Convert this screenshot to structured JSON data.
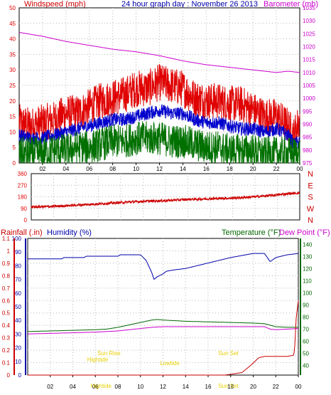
{
  "colors": {
    "windspeed": "#e00000",
    "windspeed_avg": "#0000cc",
    "windspeed_gust": "#007000",
    "barometer": "#cc00cc",
    "direction": "#cc0000",
    "rainfall": "#cc0000",
    "humidity": "#0000aa",
    "temperature": "#006600",
    "dewpoint": "#cc00cc",
    "astro": "#e6d000",
    "grid": "#b8b8b8",
    "ticks": "#000000"
  },
  "header": {
    "left_title": "Windspeed (mph)",
    "center_title": "24 hour graph day : November 26 2013",
    "right_title": "Barometer (mb)"
  },
  "chart_data": [
    {
      "id": "wind",
      "type": "line",
      "grid": true,
      "x_ticks": [
        "02",
        "04",
        "06",
        "08",
        "10",
        "12",
        "14",
        "16",
        "18",
        "20",
        "22",
        "00"
      ],
      "x_range": [
        0,
        24
      ],
      "left_axis": {
        "label": "Windspeed (mph)",
        "ticks": [
          "0",
          "5",
          "10",
          "15",
          "20",
          "25",
          "30",
          "35",
          "40",
          "45",
          "50"
        ],
        "range": [
          0,
          50
        ]
      },
      "right_axis": {
        "label": "Barometer (mb)",
        "ticks": [
          "975",
          "980",
          "985",
          "990",
          "995",
          "1000",
          "1005",
          "1010",
          "1015",
          "1020",
          "1025",
          "1030",
          "1035"
        ],
        "range": [
          975,
          1035
        ]
      },
      "series": [
        {
          "key": "wind_top",
          "axis": "left",
          "x": [
            0,
            1,
            2,
            3,
            4,
            5,
            6,
            7,
            8,
            9,
            10,
            11,
            12,
            13,
            14,
            15,
            16,
            17,
            18,
            19,
            20,
            21,
            22,
            23,
            23.5,
            24
          ],
          "values": [
            13,
            12,
            13,
            14,
            16,
            16,
            18,
            20,
            21,
            22,
            24,
            24,
            26,
            25,
            24,
            21,
            20,
            20,
            19,
            19,
            17,
            15,
            15,
            12,
            9,
            14
          ],
          "noise": 6
        },
        {
          "key": "wind_mid",
          "axis": "left",
          "x": [
            0,
            1,
            2,
            3,
            4,
            5,
            6,
            7,
            8,
            9,
            10,
            11,
            12,
            13,
            14,
            15,
            16,
            17,
            18,
            19,
            20,
            21,
            22,
            23,
            23.5,
            24
          ],
          "values": [
            9,
            8,
            8,
            9,
            10,
            11,
            12,
            13,
            14,
            14,
            15,
            16,
            17,
            16,
            16,
            14,
            13,
            13,
            12,
            11,
            11,
            10,
            11,
            9,
            6,
            7
          ],
          "noise": 2.2
        },
        {
          "key": "wind_low",
          "axis": "left",
          "x": [
            0,
            1,
            2,
            3,
            4,
            5,
            6,
            7,
            8,
            9,
            10,
            11,
            12,
            13,
            14,
            15,
            16,
            17,
            18,
            19,
            20,
            21,
            22,
            23,
            24
          ],
          "values": [
            3,
            3,
            3,
            4,
            4,
            5,
            5,
            6,
            7,
            7,
            8,
            8,
            8,
            7,
            7,
            6,
            5,
            5,
            4,
            4,
            4,
            3,
            3,
            3,
            3
          ],
          "noise": 5.5
        },
        {
          "key": "barometer",
          "axis": "right",
          "x": [
            0,
            2,
            4,
            6,
            8,
            10,
            12,
            14,
            16,
            18,
            20,
            21,
            22,
            23,
            24
          ],
          "values": [
            1025.5,
            1024,
            1022,
            1020.5,
            1019,
            1018,
            1016.5,
            1014.5,
            1013,
            1012,
            1011,
            1010.5,
            1010,
            1010.5,
            1010
          ]
        }
      ]
    },
    {
      "id": "direction",
      "type": "line",
      "grid": true,
      "x_range": [
        0,
        24
      ],
      "left_axis": {
        "ticks": [
          "0",
          "90",
          "180",
          "270",
          "360"
        ],
        "range": [
          0,
          360
        ]
      },
      "right_labels": [
        "N",
        "W",
        "S",
        "E",
        "N"
      ],
      "series": [
        {
          "key": "direction",
          "x": [
            0,
            2,
            4,
            6,
            8,
            10,
            12,
            14,
            16,
            18,
            20,
            22,
            23,
            24
          ],
          "values": [
            100,
            105,
            115,
            125,
            135,
            145,
            150,
            160,
            165,
            170,
            180,
            195,
            205,
            210
          ],
          "noise": 10
        }
      ]
    },
    {
      "id": "rain-humidity-temp",
      "type": "line",
      "grid": true,
      "x_ticks": [
        "02",
        "04",
        "06",
        "08",
        "10",
        "12",
        "14",
        "16",
        "18",
        "20",
        "22",
        "00"
      ],
      "x_range": [
        0,
        24
      ],
      "title_left_1": "Rainfall (.in)",
      "title_left_2": "Humidity (%)",
      "title_right_1": "Temperature (°F)",
      "title_right_2": "Dew Point (°F)",
      "rain_axis": {
        "ticks": [
          "0",
          "0.1",
          "0.2",
          "0.3",
          "0.4",
          "0.5",
          "0.6",
          "0.7",
          "0.8",
          "0.9",
          "1",
          "1.1"
        ],
        "range": [
          0,
          1.1
        ]
      },
      "humidity_axis": {
        "ticks": [
          "0",
          "10",
          "20",
          "30",
          "40",
          "50",
          "60",
          "70",
          "80",
          "90",
          "100"
        ],
        "range": [
          0,
          100
        ]
      },
      "temp_axis": {
        "ticks": [
          "40",
          "50",
          "60",
          "70",
          "80",
          "90",
          "100",
          "110",
          "120",
          "130",
          "140"
        ],
        "range": [
          32,
          145
        ]
      },
      "series": [
        {
          "key": "humidity",
          "axis": "humidity",
          "x": [
            0,
            3,
            3.2,
            5,
            5.2,
            8,
            8.2,
            10,
            10.5,
            11,
            11.2,
            11.5,
            12,
            12.3,
            13,
            14,
            16,
            18,
            20,
            21,
            21.5,
            22,
            23,
            24
          ],
          "values": [
            85,
            85,
            86,
            86,
            87,
            87,
            88,
            88,
            84,
            75,
            70,
            72,
            74,
            76,
            77,
            78,
            82,
            86,
            89,
            89,
            83,
            86,
            88,
            89
          ]
        },
        {
          "key": "temperature",
          "axis": "temp",
          "x": [
            0,
            2,
            4,
            6,
            7,
            8,
            9,
            10,
            11,
            11.5,
            12,
            13,
            14,
            16,
            18,
            20,
            21,
            22,
            23,
            24
          ],
          "values": [
            68,
            68.5,
            69,
            69.5,
            70,
            71.5,
            73.5,
            75.5,
            77.5,
            78,
            77.5,
            77,
            76.5,
            76,
            75.5,
            75,
            74.5,
            72,
            71.5,
            71.5
          ]
        },
        {
          "key": "dewpoint",
          "axis": "temp",
          "x": [
            0,
            2,
            4,
            6,
            8,
            10,
            11,
            12,
            14,
            16,
            18,
            20,
            21,
            21.5,
            22,
            23,
            24
          ],
          "values": [
            66,
            66.5,
            67,
            67.5,
            68.5,
            70.5,
            71.5,
            72,
            72,
            72,
            72,
            72,
            72,
            70,
            69.5,
            70,
            70.5
          ]
        },
        {
          "key": "rainfall",
          "axis": "rain",
          "x": [
            0,
            17.5,
            19,
            19.8,
            20.5,
            21,
            22,
            23,
            23.6,
            23.7,
            23.8,
            24
          ],
          "values": [
            0,
            0,
            0.02,
            0.08,
            0.14,
            0.15,
            0.15,
            0.15,
            0.16,
            0.25,
            0.45,
            0.6
          ]
        }
      ],
      "astro_events": [
        {
          "label": "Sun Rise",
          "hour": 7.2,
          "row": 0
        },
        {
          "label": "Sun Set",
          "hour": 17.8,
          "row": 0
        },
        {
          "label": "Hightide",
          "hour": 6.2,
          "row": 1
        },
        {
          "label": "Lowtide",
          "hour": 12.6,
          "row": 2
        },
        {
          "label": "Hightide",
          "hour": 6.5,
          "row": 3
        },
        {
          "label": "Sun Set",
          "hour": 17.8,
          "row": 3
        }
      ]
    }
  ]
}
